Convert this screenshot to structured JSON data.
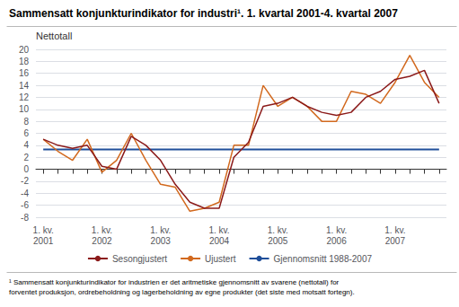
{
  "chart_data": {
    "type": "line",
    "title": "Sammensatt konjunkturindikator for industri¹. 1. kvartal 2001-4. kvartal 2007",
    "y_label": "Nettotall",
    "footnote": "¹ Sammensatt konjunkturindikator for industrien er det aritmetiske gjennomsnitt av svarene (nettotall) for\nforventet produksjon, ordrebeholdning og lagerbeholdning av egne produkter (det siste med motsatt fortegn).",
    "categories": [
      "1. kv.\n2001",
      null,
      null,
      null,
      "1. kv.\n2002",
      null,
      null,
      null,
      "1. kv.\n2003",
      null,
      null,
      null,
      "1. kv.\n2004",
      null,
      null,
      null,
      "1. kv.\n2005",
      null,
      null,
      null,
      "1. kv.\n2006",
      null,
      null,
      null,
      "1. kv.\n2007",
      null,
      null,
      null
    ],
    "series": [
      {
        "name": "Sesongjustert",
        "color": "#8B1A1A",
        "values": [
          5.0,
          4.0,
          3.5,
          4.0,
          0.5,
          0.0,
          5.5,
          4.0,
          1.5,
          -2.5,
          -5.5,
          -6.5,
          -6.5,
          2.0,
          4.5,
          10.5,
          11.0,
          12.0,
          10.5,
          9.5,
          9.0,
          9.5,
          12.0,
          13.0,
          15.0,
          15.5,
          16.5,
          11.0
        ]
      },
      {
        "name": "Ujustert",
        "color": "#D2691E",
        "values": [
          5.0,
          3.0,
          1.5,
          5.0,
          -0.5,
          1.5,
          6.0,
          1.5,
          -2.5,
          -3.0,
          -7.0,
          -6.5,
          -5.5,
          4.0,
          4.0,
          14.0,
          10.5,
          12.0,
          10.5,
          8.0,
          8.0,
          13.0,
          12.5,
          11.0,
          14.5,
          19.0,
          14.5,
          12.0
        ]
      },
      {
        "name": "Gjennomsnitt 1988-2007",
        "color": "#1F4E99",
        "values": [
          3.3,
          3.3,
          3.3,
          3.3,
          3.3,
          3.3,
          3.3,
          3.3,
          3.3,
          3.3,
          3.3,
          3.3,
          3.3,
          3.3,
          3.3,
          3.3,
          3.3,
          3.3,
          3.3,
          3.3,
          3.3,
          3.3,
          3.3,
          3.3,
          3.3,
          3.3,
          3.3,
          3.3
        ]
      }
    ],
    "ylim": [
      -8,
      20
    ],
    "yticks": [
      -8,
      -6,
      -4,
      -2,
      0,
      2,
      4,
      6,
      8,
      10,
      12,
      14,
      16,
      18,
      20
    ],
    "grid": true,
    "legend": "bottom"
  }
}
